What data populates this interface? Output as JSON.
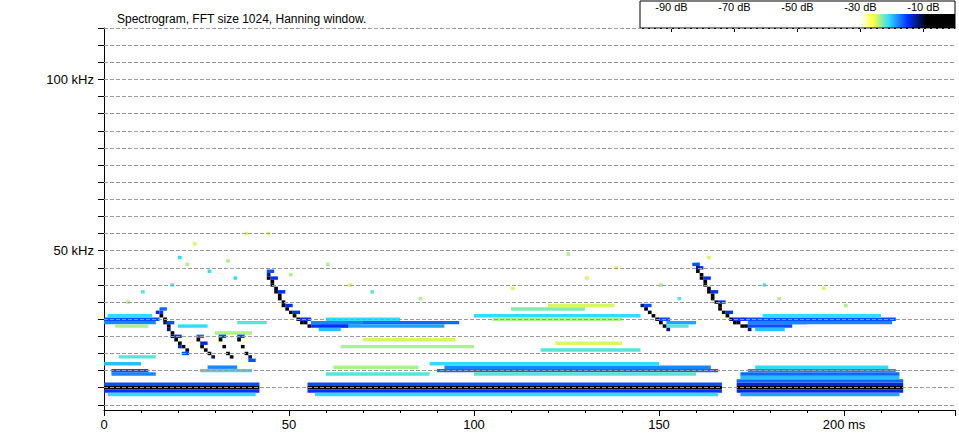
{
  "chart_data": {
    "type": "heatmap",
    "title": "Spectrogram, FFT size 1024, Hanning window.",
    "xlim": [
      0,
      230
    ],
    "xticks": [
      0,
      50,
      100,
      150,
      {
        "value": 200,
        "label": "200 ms"
      }
    ],
    "ylim": [
      3.5,
      115
    ],
    "yticks": [
      {
        "value": 50,
        "label": "50 kHz"
      },
      {
        "value": 100,
        "label": "100 kHz"
      }
    ],
    "grid": true,
    "freq_bin": 1,
    "cells": [
      [
        0,
        42,
        10,
        -8
      ],
      [
        55,
        167,
        10,
        -8
      ],
      [
        171,
        216,
        10,
        -9
      ],
      [
        0,
        42,
        9,
        -15
      ],
      [
        0,
        42,
        11,
        -16
      ],
      [
        55,
        167,
        9,
        -15
      ],
      [
        55,
        167,
        11,
        -16
      ],
      [
        171,
        216,
        9,
        -14
      ],
      [
        171,
        216,
        11,
        -14
      ],
      [
        171,
        216,
        12,
        -17
      ],
      [
        1,
        41,
        8,
        -21
      ],
      [
        57,
        166,
        8,
        -21
      ],
      [
        172,
        215,
        8,
        -19
      ],
      [
        172,
        215,
        13,
        -20
      ],
      [
        90,
        166,
        15,
        -17
      ],
      [
        92,
        164,
        16,
        -18
      ],
      [
        88,
        150,
        17,
        -21
      ],
      [
        100,
        160,
        14,
        -22
      ],
      [
        172,
        215,
        14,
        -17
      ],
      [
        174,
        214,
        15,
        -18
      ],
      [
        176,
        212,
        16,
        -21
      ],
      [
        60,
        88,
        14,
        -22
      ],
      [
        62,
        85,
        16,
        -24
      ],
      [
        2,
        14,
        14,
        -18
      ],
      [
        2,
        12,
        15,
        -16
      ],
      [
        0,
        10,
        17,
        -20
      ],
      [
        4,
        14,
        19,
        -22
      ],
      [
        26,
        40,
        15,
        -21
      ],
      [
        28,
        36,
        16,
        -18
      ],
      [
        0,
        15,
        30,
        -16
      ],
      [
        0,
        14,
        29,
        -18
      ],
      [
        1,
        13,
        31,
        -21
      ],
      [
        3,
        12,
        28,
        -24
      ],
      [
        56,
        96,
        29,
        -17
      ],
      [
        58,
        92,
        28,
        -19
      ],
      [
        60,
        80,
        30,
        -21
      ],
      [
        100,
        145,
        31,
        -21
      ],
      [
        105,
        140,
        30,
        -24
      ],
      [
        110,
        130,
        33,
        -23
      ],
      [
        120,
        138,
        34,
        -25
      ],
      [
        174,
        214,
        30,
        -16
      ],
      [
        176,
        213,
        29,
        -18
      ],
      [
        178,
        210,
        31,
        -21
      ],
      [
        152,
        160,
        29,
        -19
      ],
      [
        152,
        158,
        28,
        -22
      ],
      [
        20,
        28,
        28,
        -21
      ],
      [
        30,
        40,
        26,
        -24
      ],
      [
        36,
        44,
        29,
        -22
      ],
      [
        64,
        100,
        22,
        -24
      ],
      [
        70,
        95,
        24,
        -25
      ],
      [
        118,
        145,
        21,
        -22
      ],
      [
        122,
        140,
        23,
        -25
      ],
      [
        20,
        21,
        48,
        -21
      ],
      [
        22,
        23,
        46,
        -24
      ],
      [
        24,
        25,
        52,
        -25
      ],
      [
        28,
        29,
        44,
        -21
      ],
      [
        33,
        34,
        47,
        -24
      ],
      [
        35,
        36,
        42,
        -21
      ],
      [
        38,
        39,
        55,
        -25
      ],
      [
        18,
        19,
        40,
        -22
      ],
      [
        50,
        51,
        43,
        -24
      ],
      [
        60,
        61,
        46,
        -24
      ],
      [
        66,
        67,
        40,
        -25
      ],
      [
        72,
        73,
        38,
        -22
      ],
      [
        85,
        86,
        36,
        -24
      ],
      [
        110,
        111,
        39,
        -25
      ],
      [
        125,
        126,
        49,
        -24
      ],
      [
        130,
        131,
        42,
        -25
      ],
      [
        138,
        139,
        45,
        -25
      ],
      [
        150,
        151,
        40,
        -24
      ],
      [
        155,
        156,
        36,
        -22
      ],
      [
        160,
        161,
        46,
        -21
      ],
      [
        163,
        164,
        48,
        -25
      ],
      [
        178,
        179,
        40,
        -22
      ],
      [
        182,
        183,
        36,
        -24
      ],
      [
        194,
        195,
        39,
        -25
      ],
      [
        200,
        201,
        34,
        -24
      ],
      [
        10,
        11,
        38,
        -22
      ],
      [
        6,
        7,
        35,
        -24
      ],
      [
        44,
        45,
        55,
        -25
      ],
      [
        15,
        17,
        33,
        -17
      ],
      [
        17,
        19,
        29,
        -16
      ],
      [
        19,
        21,
        25,
        -15
      ],
      [
        21,
        23,
        20,
        -16
      ],
      [
        15,
        16,
        31,
        -8
      ],
      [
        15,
        16,
        32,
        -15
      ],
      [
        16,
        17,
        30,
        -8
      ],
      [
        16,
        17,
        29,
        -12
      ],
      [
        17,
        18,
        28,
        -8
      ],
      [
        17,
        18,
        27,
        -12
      ],
      [
        18,
        19,
        26,
        -8
      ],
      [
        18,
        19,
        25,
        -10
      ],
      [
        19,
        20,
        24,
        -8
      ],
      [
        20,
        21,
        23,
        -8
      ],
      [
        20,
        21,
        22,
        -14
      ],
      [
        21,
        22,
        22,
        -8
      ],
      [
        22,
        23,
        21,
        -10
      ],
      [
        14,
        15,
        32,
        -14
      ],
      [
        25,
        27,
        25,
        -17
      ],
      [
        26,
        28,
        23,
        -14
      ],
      [
        25,
        26,
        24,
        -8
      ],
      [
        26,
        27,
        22,
        -8
      ],
      [
        27,
        28,
        21,
        -8
      ],
      [
        28,
        29,
        20,
        -9
      ],
      [
        29,
        30,
        19,
        -12
      ],
      [
        31,
        33,
        25,
        -16
      ],
      [
        31,
        32,
        24,
        -8
      ],
      [
        32,
        33,
        22,
        -8
      ],
      [
        33,
        34,
        20,
        -8
      ],
      [
        34,
        35,
        19,
        -10
      ],
      [
        36,
        38,
        25,
        -16
      ],
      [
        39,
        41,
        18,
        -16
      ],
      [
        36,
        37,
        24,
        -8
      ],
      [
        37,
        38,
        22,
        -8
      ],
      [
        38,
        39,
        20,
        -8
      ],
      [
        39,
        40,
        19,
        -12
      ],
      [
        44,
        46,
        44,
        -16
      ],
      [
        45,
        47,
        42,
        -15
      ],
      [
        47,
        49,
        38,
        -15
      ],
      [
        49,
        51,
        34,
        -15
      ],
      [
        51,
        53,
        32,
        -15
      ],
      [
        53,
        56,
        30,
        -15
      ],
      [
        56,
        66,
        28,
        -15
      ],
      [
        56,
        70,
        29,
        -18
      ],
      [
        58,
        64,
        27,
        -20
      ],
      [
        44,
        45,
        43,
        -12
      ],
      [
        44,
        45,
        42,
        -8
      ],
      [
        45,
        46,
        41,
        -8
      ],
      [
        45,
        46,
        40,
        -8
      ],
      [
        46,
        47,
        39,
        -8
      ],
      [
        46,
        47,
        38,
        -8
      ],
      [
        47,
        48,
        37,
        -8
      ],
      [
        47,
        48,
        36,
        -8
      ],
      [
        48,
        49,
        35,
        -8
      ],
      [
        48,
        49,
        34,
        -8
      ],
      [
        49,
        50,
        33,
        -8
      ],
      [
        50,
        51,
        32,
        -8
      ],
      [
        51,
        52,
        31,
        -8
      ],
      [
        52,
        53,
        30,
        -8
      ],
      [
        53,
        54,
        29,
        -8
      ],
      [
        54,
        55,
        29,
        -9
      ],
      [
        55,
        56,
        28,
        -10
      ],
      [
        146,
        148,
        34,
        -16
      ],
      [
        150,
        153,
        30,
        -16
      ],
      [
        145,
        146,
        34,
        -12
      ],
      [
        146,
        147,
        33,
        -8
      ],
      [
        147,
        148,
        32,
        -8
      ],
      [
        148,
        149,
        31,
        -8
      ],
      [
        149,
        150,
        30,
        -8
      ],
      [
        150,
        151,
        29,
        -8
      ],
      [
        151,
        152,
        28,
        -9
      ],
      [
        152,
        153,
        27,
        -12
      ],
      [
        159,
        161,
        46,
        -16
      ],
      [
        160,
        162,
        45,
        -15
      ],
      [
        162,
        164,
        42,
        -15
      ],
      [
        164,
        166,
        38,
        -15
      ],
      [
        166,
        168,
        35,
        -15
      ],
      [
        168,
        170,
        32,
        -15
      ],
      [
        170,
        174,
        30,
        -15
      ],
      [
        174,
        186,
        28,
        -16
      ],
      [
        174,
        190,
        29,
        -18
      ],
      [
        176,
        184,
        27,
        -20
      ],
      [
        160,
        161,
        45,
        -12
      ],
      [
        160,
        161,
        44,
        -8
      ],
      [
        161,
        162,
        43,
        -8
      ],
      [
        161,
        162,
        42,
        -8
      ],
      [
        162,
        163,
        41,
        -8
      ],
      [
        162,
        163,
        40,
        -8
      ],
      [
        163,
        164,
        39,
        -8
      ],
      [
        163,
        164,
        38,
        -8
      ],
      [
        164,
        165,
        37,
        -8
      ],
      [
        164,
        165,
        36,
        -8
      ],
      [
        165,
        166,
        35,
        -8
      ],
      [
        166,
        167,
        34,
        -8
      ],
      [
        166,
        167,
        33,
        -8
      ],
      [
        167,
        168,
        32,
        -8
      ],
      [
        168,
        169,
        31,
        -8
      ],
      [
        169,
        170,
        30,
        -8
      ],
      [
        170,
        171,
        29,
        -8
      ],
      [
        171,
        172,
        29,
        -8
      ],
      [
        172,
        173,
        28,
        -8
      ],
      [
        173,
        174,
        28,
        -9
      ],
      [
        174,
        175,
        27,
        -12
      ]
    ],
    "colorbar": {
      "range": [
        -100,
        0
      ],
      "ticks": [
        {
          "value": -90,
          "label": "-90 dB"
        },
        {
          "value": -70,
          "label": "-70 dB"
        },
        {
          "value": -50,
          "label": "-50 dB"
        },
        {
          "value": -30,
          "label": "-30 dB"
        },
        {
          "value": -10,
          "label": "-10 dB"
        }
      ]
    }
  }
}
